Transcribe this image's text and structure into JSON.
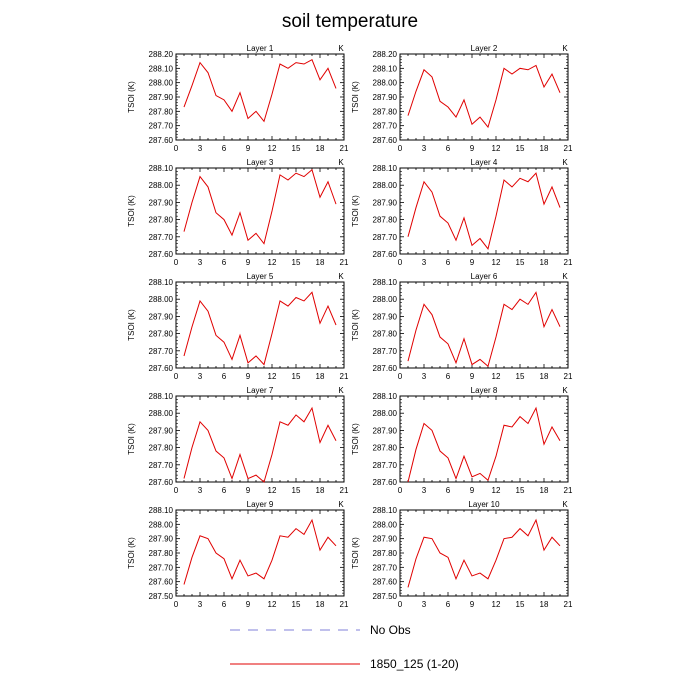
{
  "figure": {
    "title": "soil temperature"
  },
  "legend": [
    {
      "label": "No Obs",
      "color": "#8080d8",
      "dashed": true
    },
    {
      "label": "1850_125 (1-20)",
      "color": "#e00000",
      "dashed": false
    }
  ],
  "chart_data": [
    {
      "type": "line",
      "title": "Layer 1",
      "unit": "K",
      "ylabel": "TSOI  (K)",
      "xlim": [
        0,
        21
      ],
      "ylim": [
        287.6,
        288.2
      ],
      "xticks": [
        0,
        3,
        6,
        9,
        12,
        15,
        18,
        21
      ],
      "yticks": [
        "287.60",
        "287.70",
        "287.80",
        "287.90",
        "288.00",
        "288.10",
        "288.20"
      ],
      "series": [
        {
          "color": "#e00000",
          "x": [
            1,
            2,
            3,
            4,
            5,
            6,
            7,
            8,
            9,
            10,
            11,
            12,
            13,
            14,
            15,
            16,
            17,
            18,
            19,
            20
          ],
          "y": [
            287.83,
            287.98,
            288.14,
            288.07,
            287.91,
            287.88,
            287.8,
            287.93,
            287.75,
            287.8,
            287.73,
            287.92,
            288.13,
            288.1,
            288.14,
            288.13,
            288.16,
            288.02,
            288.1,
            287.96
          ]
        }
      ]
    },
    {
      "type": "line",
      "title": "Layer 2",
      "unit": "K",
      "ylabel": "TSOI  (K)",
      "xlim": [
        0,
        21
      ],
      "ylim": [
        287.6,
        288.2
      ],
      "xticks": [
        0,
        3,
        6,
        9,
        12,
        15,
        18,
        21
      ],
      "yticks": [
        "287.60",
        "287.70",
        "287.80",
        "287.90",
        "288.00",
        "288.10",
        "288.20"
      ],
      "series": [
        {
          "color": "#e00000",
          "x": [
            1,
            2,
            3,
            4,
            5,
            6,
            7,
            8,
            9,
            10,
            11,
            12,
            13,
            14,
            15,
            16,
            17,
            18,
            19,
            20
          ],
          "y": [
            287.77,
            287.94,
            288.09,
            288.04,
            287.87,
            287.83,
            287.76,
            287.88,
            287.71,
            287.76,
            287.69,
            287.88,
            288.1,
            288.06,
            288.1,
            288.09,
            288.12,
            287.97,
            288.06,
            287.93
          ]
        }
      ]
    },
    {
      "type": "line",
      "title": "Layer 3",
      "unit": "K",
      "ylabel": "TSOI  (K)",
      "xlim": [
        0,
        21
      ],
      "ylim": [
        287.6,
        288.1
      ],
      "xticks": [
        0,
        3,
        6,
        9,
        12,
        15,
        18,
        21
      ],
      "yticks": [
        "287.60",
        "287.70",
        "287.80",
        "287.90",
        "288.00",
        "288.10"
      ],
      "series": [
        {
          "color": "#e00000",
          "x": [
            1,
            2,
            3,
            4,
            5,
            6,
            7,
            8,
            9,
            10,
            11,
            12,
            13,
            14,
            15,
            16,
            17,
            18,
            19,
            20
          ],
          "y": [
            287.73,
            287.9,
            288.05,
            287.99,
            287.84,
            287.8,
            287.71,
            287.84,
            287.68,
            287.72,
            287.66,
            287.85,
            288.06,
            288.03,
            288.07,
            288.05,
            288.09,
            287.93,
            288.02,
            287.89
          ]
        }
      ]
    },
    {
      "type": "line",
      "title": "Layer 4",
      "unit": "K",
      "ylabel": "TSOI  (K)",
      "xlim": [
        0,
        21
      ],
      "ylim": [
        287.6,
        288.1
      ],
      "xticks": [
        0,
        3,
        6,
        9,
        12,
        15,
        18,
        21
      ],
      "yticks": [
        "287.60",
        "287.70",
        "287.80",
        "287.90",
        "288.00",
        "288.10"
      ],
      "series": [
        {
          "color": "#e00000",
          "x": [
            1,
            2,
            3,
            4,
            5,
            6,
            7,
            8,
            9,
            10,
            11,
            12,
            13,
            14,
            15,
            16,
            17,
            18,
            19,
            20
          ],
          "y": [
            287.7,
            287.87,
            288.02,
            287.96,
            287.82,
            287.78,
            287.68,
            287.81,
            287.65,
            287.69,
            287.63,
            287.82,
            288.03,
            287.99,
            288.04,
            288.02,
            288.07,
            287.89,
            287.99,
            287.87
          ]
        }
      ]
    },
    {
      "type": "line",
      "title": "Layer 5",
      "unit": "K",
      "ylabel": "TSOI  (K)",
      "xlim": [
        0,
        21
      ],
      "ylim": [
        287.6,
        288.1
      ],
      "xticks": [
        0,
        3,
        6,
        9,
        12,
        15,
        18,
        21
      ],
      "yticks": [
        "287.60",
        "287.70",
        "287.80",
        "287.90",
        "288.00",
        "288.10"
      ],
      "series": [
        {
          "color": "#e00000",
          "x": [
            1,
            2,
            3,
            4,
            5,
            6,
            7,
            8,
            9,
            10,
            11,
            12,
            13,
            14,
            15,
            16,
            17,
            18,
            19,
            20
          ],
          "y": [
            287.67,
            287.84,
            287.99,
            287.93,
            287.79,
            287.75,
            287.65,
            287.79,
            287.63,
            287.67,
            287.62,
            287.8,
            287.99,
            287.96,
            288.01,
            287.99,
            288.04,
            287.86,
            287.96,
            287.85
          ]
        }
      ]
    },
    {
      "type": "line",
      "title": "Layer 6",
      "unit": "K",
      "ylabel": "TSOI  (K)",
      "xlim": [
        0,
        21
      ],
      "ylim": [
        287.6,
        288.1
      ],
      "xticks": [
        0,
        3,
        6,
        9,
        12,
        15,
        18,
        21
      ],
      "yticks": [
        "287.60",
        "287.70",
        "287.80",
        "287.90",
        "288.00",
        "288.10"
      ],
      "series": [
        {
          "color": "#e00000",
          "x": [
            1,
            2,
            3,
            4,
            5,
            6,
            7,
            8,
            9,
            10,
            11,
            12,
            13,
            14,
            15,
            16,
            17,
            18,
            19,
            20
          ],
          "y": [
            287.64,
            287.82,
            287.97,
            287.91,
            287.78,
            287.74,
            287.63,
            287.77,
            287.62,
            287.65,
            287.61,
            287.78,
            287.97,
            287.94,
            288.0,
            287.97,
            288.04,
            287.84,
            287.94,
            287.84
          ]
        }
      ]
    },
    {
      "type": "line",
      "title": "Layer 7",
      "unit": "K",
      "ylabel": "TSOI  (K)",
      "xlim": [
        0,
        21
      ],
      "ylim": [
        287.6,
        288.1
      ],
      "xticks": [
        0,
        3,
        6,
        9,
        12,
        15,
        18,
        21
      ],
      "yticks": [
        "287.60",
        "287.70",
        "287.80",
        "287.90",
        "288.00",
        "288.10"
      ],
      "series": [
        {
          "color": "#e00000",
          "x": [
            1,
            2,
            3,
            4,
            5,
            6,
            7,
            8,
            9,
            10,
            11,
            12,
            13,
            14,
            15,
            16,
            17,
            18,
            19,
            20
          ],
          "y": [
            287.62,
            287.8,
            287.95,
            287.9,
            287.78,
            287.74,
            287.62,
            287.76,
            287.62,
            287.64,
            287.6,
            287.76,
            287.95,
            287.93,
            287.99,
            287.95,
            288.03,
            287.83,
            287.93,
            287.84
          ]
        }
      ]
    },
    {
      "type": "line",
      "title": "Layer 8",
      "unit": "K",
      "ylabel": "TSOI  (K)",
      "xlim": [
        0,
        21
      ],
      "ylim": [
        287.6,
        288.1
      ],
      "xticks": [
        0,
        3,
        6,
        9,
        12,
        15,
        18,
        21
      ],
      "yticks": [
        "287.60",
        "287.70",
        "287.80",
        "287.90",
        "288.00",
        "288.10"
      ],
      "series": [
        {
          "color": "#e00000",
          "x": [
            1,
            2,
            3,
            4,
            5,
            6,
            7,
            8,
            9,
            10,
            11,
            12,
            13,
            14,
            15,
            16,
            17,
            18,
            19,
            20
          ],
          "y": [
            287.6,
            287.79,
            287.94,
            287.9,
            287.78,
            287.74,
            287.62,
            287.75,
            287.63,
            287.65,
            287.61,
            287.75,
            287.93,
            287.92,
            287.98,
            287.94,
            288.03,
            287.82,
            287.92,
            287.84
          ]
        }
      ]
    },
    {
      "type": "line",
      "title": "Layer 9",
      "unit": "K",
      "ylabel": "TSOI  (K)",
      "xlim": [
        0,
        21
      ],
      "ylim": [
        287.5,
        288.1
      ],
      "xticks": [
        0,
        3,
        6,
        9,
        12,
        15,
        18,
        21
      ],
      "yticks": [
        "287.50",
        "287.60",
        "287.70",
        "287.80",
        "287.90",
        "288.00",
        "288.10"
      ],
      "series": [
        {
          "color": "#e00000",
          "x": [
            1,
            2,
            3,
            4,
            5,
            6,
            7,
            8,
            9,
            10,
            11,
            12,
            13,
            14,
            15,
            16,
            17,
            18,
            19,
            20
          ],
          "y": [
            287.58,
            287.77,
            287.92,
            287.9,
            287.8,
            287.76,
            287.62,
            287.75,
            287.64,
            287.66,
            287.62,
            287.75,
            287.92,
            287.91,
            287.97,
            287.93,
            288.03,
            287.82,
            287.91,
            287.85
          ]
        }
      ]
    },
    {
      "type": "line",
      "title": "Layer 10",
      "unit": "K",
      "ylabel": "TSOI  (K)",
      "xlim": [
        0,
        21
      ],
      "ylim": [
        287.5,
        288.1
      ],
      "xticks": [
        0,
        3,
        6,
        9,
        12,
        15,
        18,
        21
      ],
      "yticks": [
        "287.50",
        "287.60",
        "287.70",
        "287.80",
        "287.90",
        "288.00",
        "288.10"
      ],
      "series": [
        {
          "color": "#e00000",
          "x": [
            1,
            2,
            3,
            4,
            5,
            6,
            7,
            8,
            9,
            10,
            11,
            12,
            13,
            14,
            15,
            16,
            17,
            18,
            19,
            20
          ],
          "y": [
            287.56,
            287.76,
            287.91,
            287.9,
            287.8,
            287.77,
            287.62,
            287.75,
            287.64,
            287.66,
            287.62,
            287.75,
            287.9,
            287.91,
            287.97,
            287.92,
            288.03,
            287.82,
            287.91,
            287.85
          ]
        }
      ]
    }
  ]
}
